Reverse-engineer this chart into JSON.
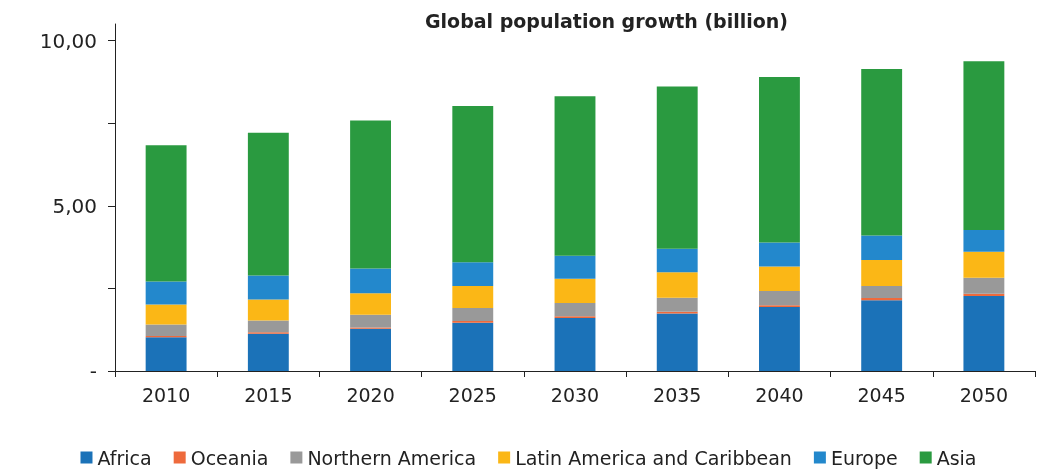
{
  "chart_data": {
    "type": "bar",
    "title": "Global population growth (billion)",
    "stacked": true,
    "categories": [
      "2010",
      "2015",
      "2020",
      "2025",
      "2030",
      "2035",
      "2040",
      "2045",
      "2050"
    ],
    "series": [
      {
        "name": "Africa",
        "color": "#1b72b8",
        "values": [
          1.02,
          1.13,
          1.28,
          1.46,
          1.6,
          1.74,
          1.94,
          2.14,
          2.27
        ]
      },
      {
        "name": "Oceania",
        "color": "#ee6a3c",
        "values": [
          0.04,
          0.04,
          0.04,
          0.05,
          0.06,
          0.05,
          0.05,
          0.07,
          0.07
        ]
      },
      {
        "name": "Northern America",
        "color": "#999999",
        "values": [
          0.35,
          0.36,
          0.38,
          0.4,
          0.4,
          0.43,
          0.43,
          0.36,
          0.48
        ]
      },
      {
        "name": "Latin America and Caribbean",
        "color": "#fbb716",
        "values": [
          0.6,
          0.63,
          0.65,
          0.66,
          0.73,
          0.77,
          0.74,
          0.79,
          0.79
        ]
      },
      {
        "name": "Europe",
        "color": "#2388cc",
        "values": [
          0.7,
          0.73,
          0.75,
          0.72,
          0.7,
          0.71,
          0.73,
          0.74,
          0.66
        ]
      },
      {
        "name": "Asia",
        "color": "#2a9a40",
        "values": [
          4.12,
          4.32,
          4.48,
          4.73,
          4.82,
          4.91,
          5.01,
          5.04,
          5.1
        ]
      }
    ],
    "ylim": [
      0,
      10.5
    ],
    "yticks": [
      {
        "value": 0,
        "label": "-"
      },
      {
        "value": 2.5,
        "label": null
      },
      {
        "value": 5,
        "label": "5,00"
      },
      {
        "value": 7.5,
        "label": null
      },
      {
        "value": 10,
        "label": "10,00"
      }
    ],
    "grid": false,
    "legend": "bottom"
  }
}
